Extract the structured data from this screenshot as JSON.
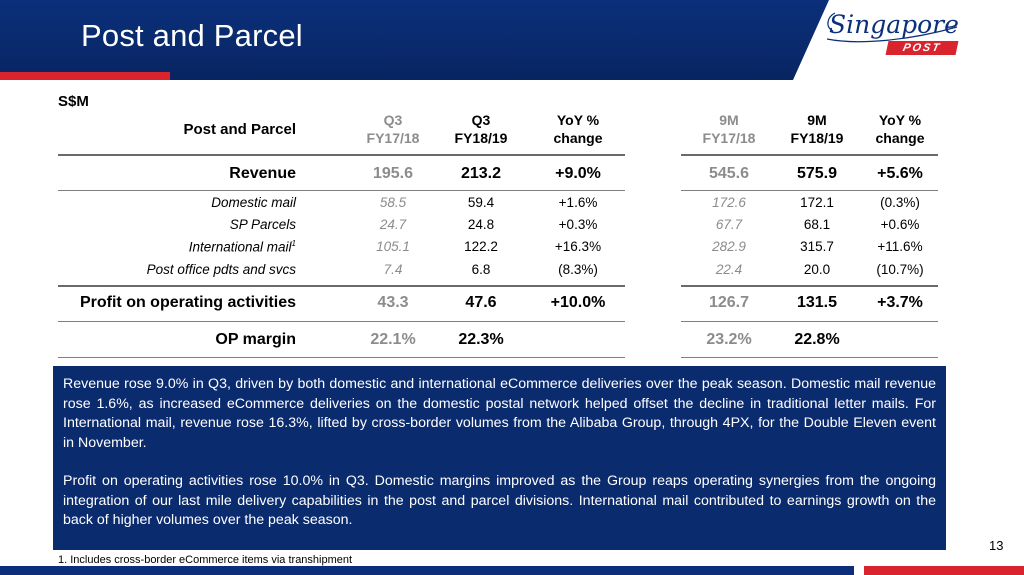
{
  "header": {
    "title": "Post and Parcel"
  },
  "logo": {
    "script": "Singapore",
    "badge": "POST"
  },
  "units": "S$M",
  "table": {
    "row_header": "Post and Parcel",
    "columns": [
      {
        "line1": "Q3",
        "line2": "FY17/18",
        "style": "grey"
      },
      {
        "line1": "Q3",
        "line2": "FY18/19",
        "style": "bold"
      },
      {
        "line1": "YoY %",
        "line2": "change",
        "style": "bold"
      },
      {
        "line1": "9M",
        "line2": "FY17/18",
        "style": "grey"
      },
      {
        "line1": "9M",
        "line2": "FY18/19",
        "style": "bold"
      },
      {
        "line1": "YoY %",
        "line2": "change",
        "style": "bold"
      }
    ],
    "revenue": {
      "label": "Revenue",
      "values": [
        "195.6",
        "213.2",
        "+9.0%",
        "545.6",
        "575.9",
        "+5.6%"
      ]
    },
    "sub_rows": [
      {
        "label": "Domestic mail",
        "values": [
          "58.5",
          "59.4",
          "+1.6%",
          "172.6",
          "172.1",
          "(0.3%)"
        ]
      },
      {
        "label": "SP Parcels",
        "values": [
          "24.7",
          "24.8",
          "+0.3%",
          "67.7",
          "68.1",
          "+0.6%"
        ]
      },
      {
        "label": "International mail",
        "footnote_mark": "1",
        "values": [
          "105.1",
          "122.2",
          "+16.3%",
          "282.9",
          "315.7",
          "+11.6%"
        ]
      },
      {
        "label": "Post office pdts and svcs",
        "values": [
          "7.4",
          "6.8",
          "(8.3%)",
          "22.4",
          "20.0",
          "(10.7%)"
        ]
      }
    ],
    "profit": {
      "label": "Profit on operating activities",
      "values": [
        "43.3",
        "47.6",
        "+10.0%",
        "126.7",
        "131.5",
        "+3.7%"
      ]
    },
    "margin": {
      "label": "OP margin",
      "values": [
        "22.1%",
        "22.3%",
        "",
        "23.2%",
        "22.8%",
        ""
      ]
    }
  },
  "commentary": {
    "p1": "Revenue rose 9.0% in Q3, driven by both domestic and international eCommerce deliveries over the peak season. Domestic mail revenue rose 1.6%, as increased eCommerce deliveries on the domestic postal network helped offset the decline in traditional letter mails. For International mail, revenue rose 16.3%, lifted by cross-border volumes from the Alibaba Group, through 4PX, for the Double Eleven event in November.",
    "p2": "Profit on operating activities rose 10.0% in Q3. Domestic margins improved as the Group reaps operating synergies from the ongoing integration of our last mile delivery capabilities in the post and parcel divisions. International mail contributed to earnings growth on the back of higher volumes over the peak season."
  },
  "page_number": "13",
  "footnote": "1. Includes cross-border eCommerce items via transhipment",
  "colors": {
    "navy": "#0b2f7a",
    "red": "#d9232d",
    "grey_text": "#8c8c8c"
  }
}
